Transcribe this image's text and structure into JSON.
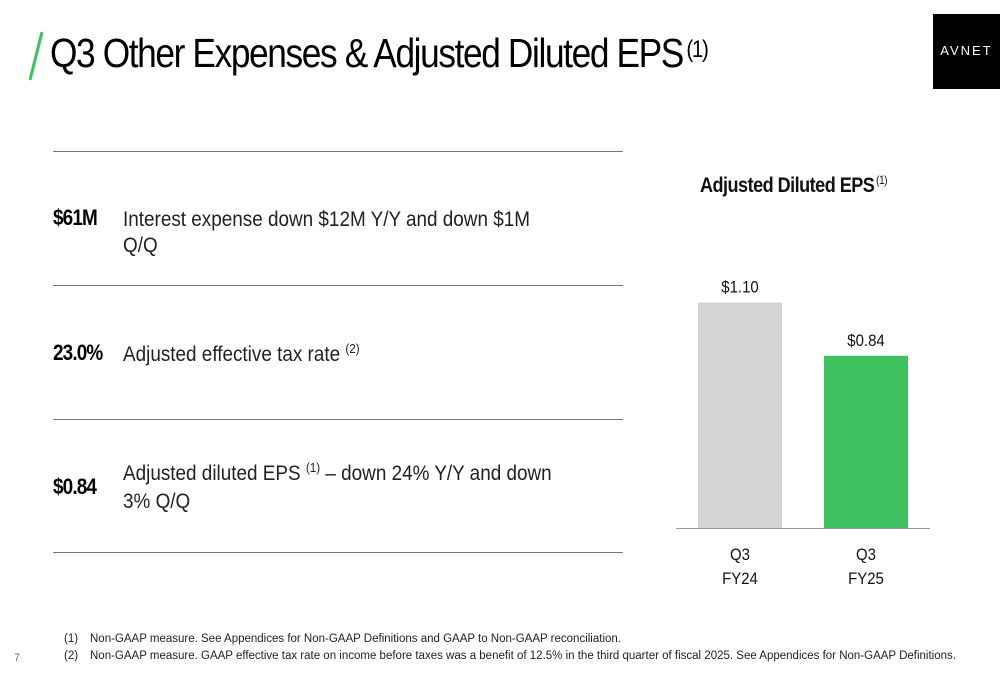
{
  "header": {
    "title": "Q3 Other Expenses & Adjusted Diluted EPS",
    "title_sup": "(1)",
    "logo_text": "AVNET"
  },
  "metrics": [
    {
      "value": "$61M",
      "description": "Interest expense down $12M Y/Y and down $1M Q/Q",
      "sup": "",
      "suffix": ""
    },
    {
      "value": "23.0%",
      "description": "Adjusted effective tax rate",
      "sup": "(2)",
      "suffix": ""
    },
    {
      "value": "$0.84",
      "description": "Adjusted diluted EPS",
      "sup": "(1)",
      "suffix": " – down 24% Y/Y and down 3% Q/Q"
    }
  ],
  "chart_data": {
    "type": "bar",
    "title": "Adjusted Diluted EPS",
    "title_sup": "(1)",
    "categories": [
      "Q3 FY24",
      "Q3 FY25"
    ],
    "category_lines": [
      [
        "Q3",
        "FY24"
      ],
      [
        "Q3",
        "FY25"
      ]
    ],
    "values": [
      1.1,
      0.84
    ],
    "value_labels": [
      "$1.10",
      "$0.84"
    ],
    "colors": [
      "#d4d4d4",
      "#3ec25f"
    ],
    "ylim": [
      0,
      1.2
    ],
    "grid": false,
    "legend": "none",
    "xlabel": "",
    "ylabel": ""
  },
  "footnotes": [
    {
      "num": "(1)",
      "text": "Non-GAAP measure. See Appendices for Non-GAAP Definitions and GAAP to Non-GAAP reconciliation."
    },
    {
      "num": "(2)",
      "text": "Non-GAAP measure. GAAP effective tax rate on income before taxes was a benefit of 12.5% in the third quarter of fiscal 2025. See Appendices for Non-GAAP Definitions."
    }
  ],
  "page_number": "7",
  "colors": {
    "accent_green": "#3ec25f",
    "bar_prior": "#d4d4d4",
    "logo_bg": "#000000"
  }
}
